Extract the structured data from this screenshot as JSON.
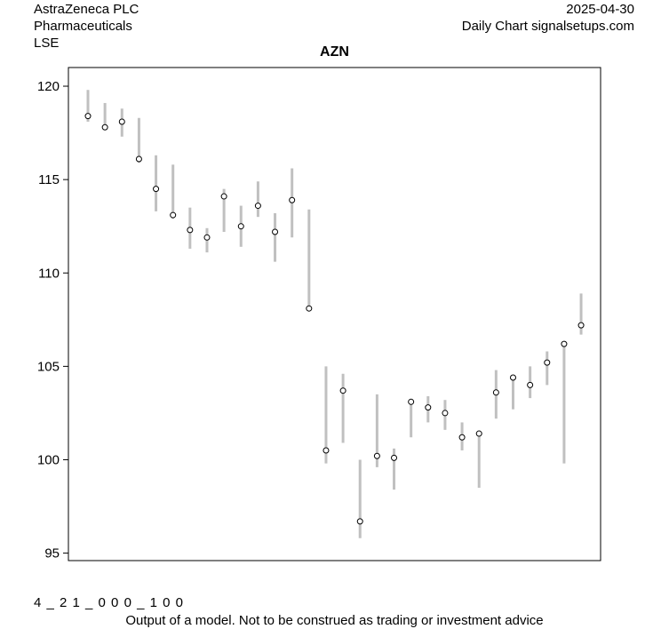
{
  "header": {
    "company": "AstraZeneca PLC",
    "sector": "Pharmaceuticals",
    "exchange": "LSE",
    "date": "2025-04-30",
    "source": "Daily Chart signalsetups.com"
  },
  "footer": {
    "code": "4 _ 2 1 _ 0 0 0 _ 1 0 0",
    "disclaimer": "Output of a model. Not to be construed as trading or investment advice"
  },
  "chart_data": {
    "type": "range-dot",
    "title": "AZN",
    "xlabel": "",
    "ylabel": "",
    "ylim": [
      94.6,
      121
    ],
    "yticks": [
      95,
      100,
      105,
      110,
      115,
      120
    ],
    "grid": false,
    "legend": "none",
    "colors": {
      "range": "#c0c0c0",
      "marker": "#000000",
      "marker_fill": "#ffffff"
    },
    "points": [
      {
        "low": 118.1,
        "high": 119.8,
        "close": 118.4
      },
      {
        "low": 117.8,
        "high": 119.1,
        "close": 117.8
      },
      {
        "low": 117.3,
        "high": 118.8,
        "close": 118.1
      },
      {
        "low": 115.9,
        "high": 118.3,
        "close": 116.1
      },
      {
        "low": 113.3,
        "high": 116.3,
        "close": 114.5
      },
      {
        "low": 112.9,
        "high": 115.8,
        "close": 113.1
      },
      {
        "low": 111.3,
        "high": 113.5,
        "close": 112.3
      },
      {
        "low": 111.1,
        "high": 112.4,
        "close": 111.9
      },
      {
        "low": 112.2,
        "high": 114.5,
        "close": 114.1
      },
      {
        "low": 111.4,
        "high": 113.6,
        "close": 112.5
      },
      {
        "low": 113.0,
        "high": 114.9,
        "close": 113.6
      },
      {
        "low": 110.6,
        "high": 113.2,
        "close": 112.2
      },
      {
        "low": 111.9,
        "high": 115.6,
        "close": 113.9
      },
      {
        "low": 108.0,
        "high": 113.4,
        "close": 108.1
      },
      {
        "low": 99.8,
        "high": 105.0,
        "close": 100.5
      },
      {
        "low": 100.9,
        "high": 104.6,
        "close": 103.7
      },
      {
        "low": 95.8,
        "high": 100.0,
        "close": 96.7
      },
      {
        "low": 99.6,
        "high": 103.5,
        "close": 100.2
      },
      {
        "low": 98.4,
        "high": 100.6,
        "close": 100.1
      },
      {
        "low": 101.2,
        "high": 103.2,
        "close": 103.1
      },
      {
        "low": 102.0,
        "high": 103.4,
        "close": 102.8
      },
      {
        "low": 101.6,
        "high": 103.2,
        "close": 102.5
      },
      {
        "low": 100.5,
        "high": 102.0,
        "close": 101.2
      },
      {
        "low": 98.5,
        "high": 101.5,
        "close": 101.4
      },
      {
        "low": 102.2,
        "high": 104.8,
        "close": 103.6
      },
      {
        "low": 102.7,
        "high": 104.5,
        "close": 104.4
      },
      {
        "low": 103.3,
        "high": 105.0,
        "close": 104.0
      },
      {
        "low": 104.0,
        "high": 105.8,
        "close": 105.2
      },
      {
        "low": 99.8,
        "high": 106.2,
        "close": 106.2
      },
      {
        "low": 106.7,
        "high": 108.9,
        "close": 107.2
      }
    ]
  }
}
